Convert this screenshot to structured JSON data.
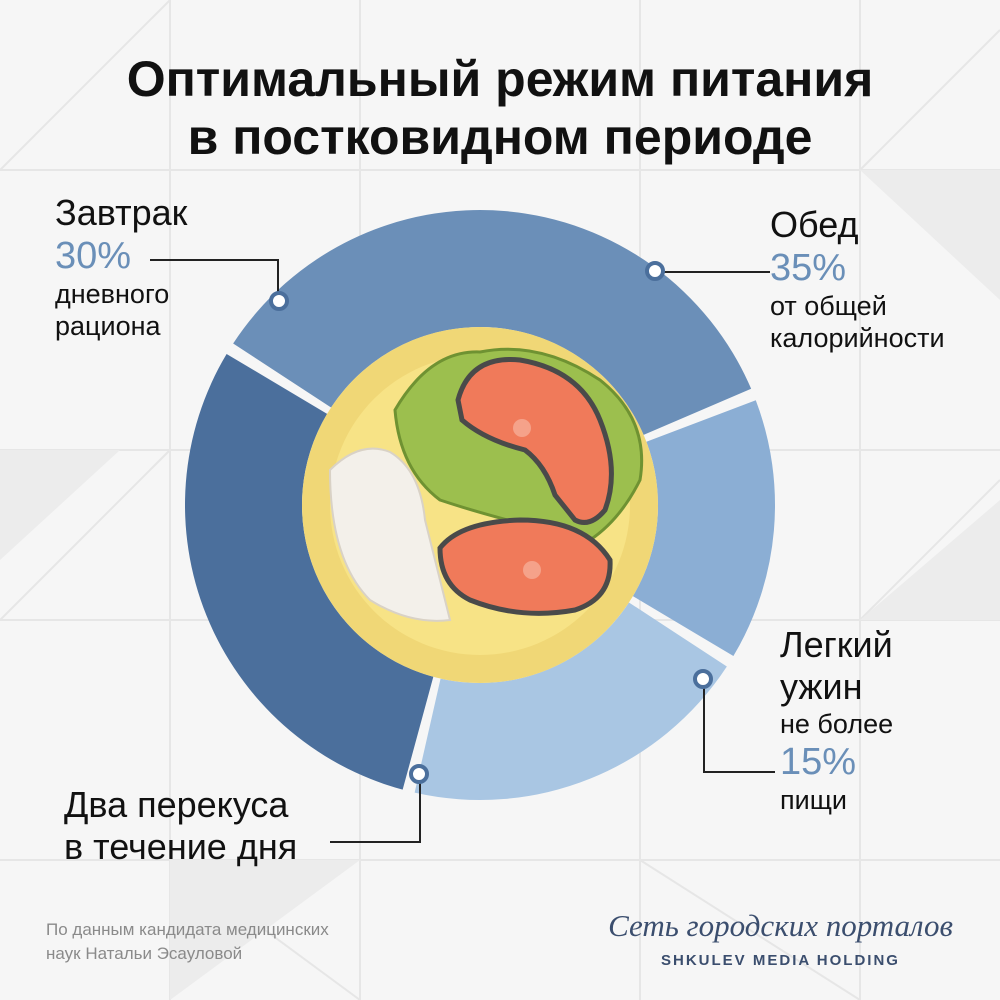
{
  "title": {
    "line1": "Оптимальный режим питания",
    "line2": "в постковидном периоде"
  },
  "chart_data": {
    "type": "pie",
    "style": "donut",
    "unit": "%",
    "series": [
      {
        "name": "Завтрак",
        "value": 30,
        "color": "#4b6f9c"
      },
      {
        "name": "Обед",
        "value": 35,
        "color": "#6b8fb8"
      },
      {
        "name": "Легкий ужин",
        "value": 15,
        "color": "#8baed4"
      },
      {
        "name": "Два перекуса в течение дня",
        "value": 20,
        "color": "#a9c6e3"
      }
    ],
    "center_illustration": "plate-with-salmon-rice-lettuce"
  },
  "labels": {
    "breakfast": {
      "name": "Завтрак",
      "pct": "30%",
      "desc1": "дневного",
      "desc2": "рациона"
    },
    "lunch": {
      "name": "Обед",
      "pct": "35%",
      "desc1": "от общей",
      "desc2": "калорийности"
    },
    "dinner": {
      "name1": "Легкий",
      "name2": "ужин",
      "desc0": "не более",
      "pct": "15%",
      "desc1": "пищи"
    },
    "snacks": {
      "line1": "Два перекуса",
      "line2": "в течение дня"
    }
  },
  "footer": {
    "source1": "По данным кандидата медицинских",
    "source2": "наук Натальи Эсауловой",
    "brand_script": "Сеть городских порталов",
    "brand_caps": "SHKULEV MEDIA HOLDING"
  },
  "colors": {
    "percent": "#6a8fb8",
    "plate_rim": "#f0d776",
    "plate_center": "#f7e386",
    "salmon": "#f07a5a",
    "lettuce": "#9cbf4e"
  }
}
